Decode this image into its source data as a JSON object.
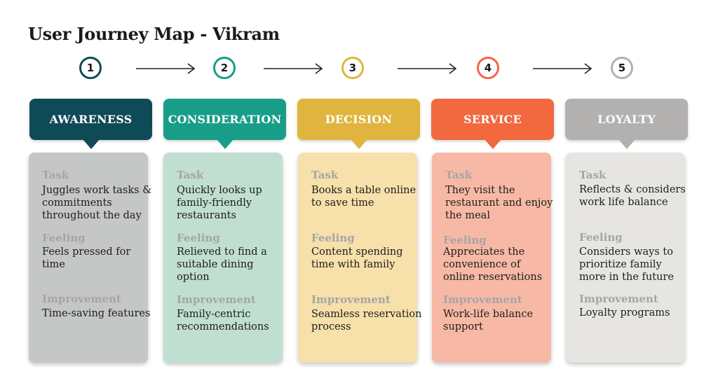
{
  "title": "User Journey Map - Vikram",
  "stages": [
    {
      "number": "1",
      "name": "AWARENESS",
      "color": "#0f4a57",
      "card_color": "#c4c7c5",
      "task_label": "Task",
      "task": "Juggles work tasks & commitments throughout the day",
      "feeling_label": "Feeling",
      "feeling": "Feels pressed for time",
      "improvement_label": "Improvement",
      "improvement": "Time-saving features"
    },
    {
      "number": "2",
      "name": "CONSIDERATION",
      "color": "#189e88",
      "card_color": "#c0dfd1",
      "task_label": "Task",
      "task": "Quickly looks up family-friendly restaurants",
      "feeling_label": "Feeling",
      "feeling": "Relieved to find a suitable dining option",
      "improvement_label": "Improvement",
      "improvement": "Family-centric recommendations"
    },
    {
      "number": "3",
      "name": "DECISION",
      "color": "#e0b53f",
      "card_color": "#f7e0aa",
      "task_label": "Task",
      "task": "Books a table online to save time",
      "feeling_label": "Feeling",
      "feeling": "Content spending time with family",
      "improvement_label": "Improvement",
      "improvement": "Seamless reservation process"
    },
    {
      "number": "4",
      "name": "SERVICE",
      "color": "#f2683f",
      "card_color": "#f7b9a5",
      "task_label": "Task",
      "task": "They visit the restaurant and enjoy the meal",
      "feeling_label": "Feeling",
      "feeling": "Appreciates the convenience of online reservations",
      "improvement_label": "Improvement",
      "improvement": "Work-life balance support"
    },
    {
      "number": "5",
      "name": "LOYALTY",
      "color": "#b3b0b0",
      "card_color": "#e6e5e1",
      "task_label": "Task",
      "task": "Reflects & considers work life balance",
      "feeling_label": "Feeling",
      "feeling": "Considers ways to prioritize family more in the future",
      "improvement_label": "Improvement",
      "improvement": "Loyalty programs"
    }
  ]
}
